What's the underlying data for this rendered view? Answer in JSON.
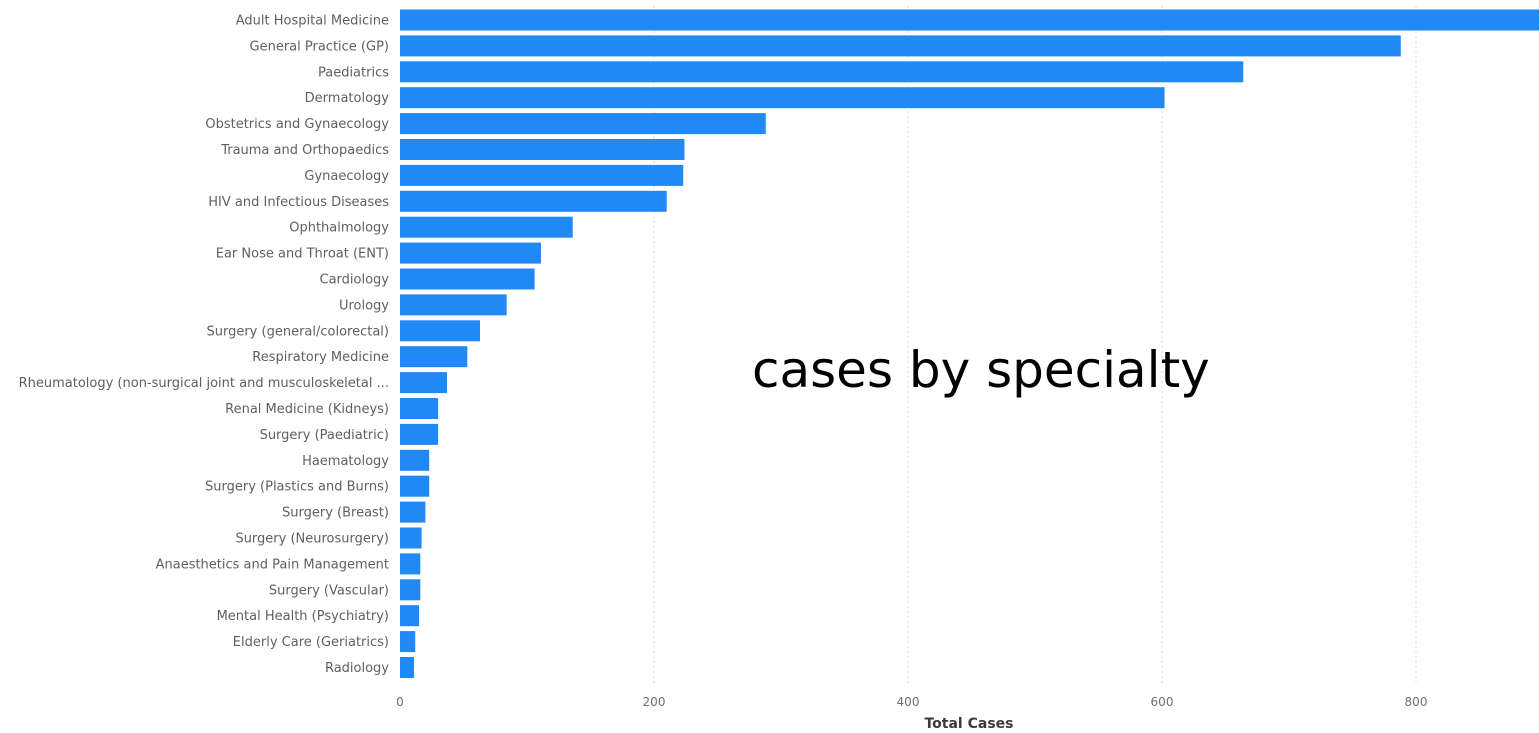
{
  "chart_data": {
    "type": "bar",
    "orientation": "horizontal",
    "categories": [
      "Adult Hospital Medicine",
      "General Practice (GP)",
      "Paediatrics",
      "Dermatology",
      "Obstetrics and Gynaecology",
      "Trauma and Orthopaedics",
      "Gynaecology",
      "HIV and Infectious Diseases",
      "Ophthalmology",
      "Ear Nose and Throat (ENT)",
      "Cardiology",
      "Urology",
      "Surgery (general/colorectal)",
      "Respiratory Medicine",
      "Rheumatology (non-surgical joint and musculoskeletal ...",
      "Renal Medicine (Kidneys)",
      "Surgery (Paediatric)",
      "Haematology",
      "Surgery (Plastics and Burns)",
      "Surgery (Breast)",
      "Surgery (Neurosurgery)",
      "Anaesthetics and Pain Management",
      "Surgery (Vascular)",
      "Mental Health (Psychiatry)",
      "Elderly Care (Geriatrics)",
      "Radiology"
    ],
    "values": [
      900,
      788,
      664,
      602,
      288,
      224,
      223,
      210,
      136,
      111,
      106,
      84,
      63,
      53,
      37,
      30,
      30,
      23,
      23,
      20,
      17,
      16,
      16,
      15,
      12,
      11
    ],
    "xlabel": "Total Cases",
    "ylabel": "",
    "xlim": [
      0,
      900
    ],
    "x_ticks": [
      0,
      200,
      400,
      600,
      800
    ],
    "grid": "vertical dotted",
    "bar_color": "#2089f3",
    "annotation": "cases by specialty"
  }
}
